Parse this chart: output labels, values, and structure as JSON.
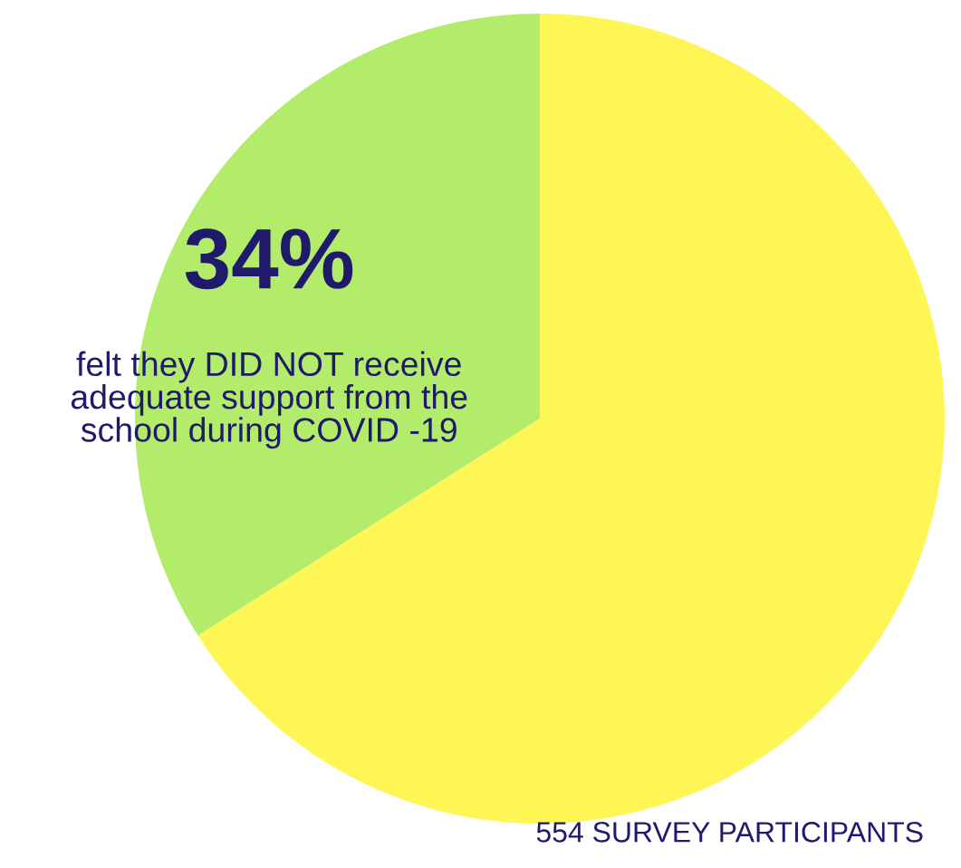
{
  "chart_data": {
    "type": "pie",
    "categories": [
      "felt they DID NOT receive\nadequate support from the\nschool during COVID -19",
      null
    ],
    "values": [
      34,
      66
    ],
    "colors": [
      "#b3ec6b",
      "#fef654"
    ],
    "value_labels": [
      "34%",
      null
    ],
    "annotations": [
      "554 SURVEY PARTICIPANTS"
    ]
  }
}
